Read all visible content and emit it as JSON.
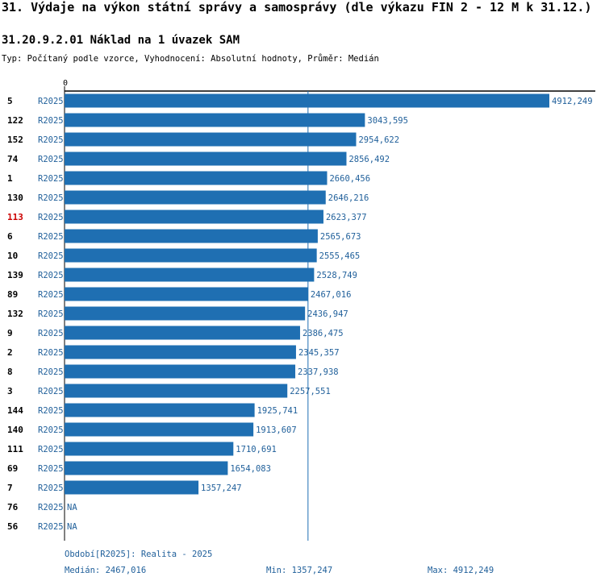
{
  "header": {
    "title": "31. Výdaje na výkon státní správy a samosprávy (dle výkazu FIN 2 - 12 M k 31.12.)",
    "subtitle": "31.20.9.2.01 Náklad na 1 úvazek SAM",
    "meta": "Typ: Počítaný podle vzorce, Vyhodnocení: Absolutní hodnoty, Průměr: Medián"
  },
  "chart_data": {
    "type": "bar",
    "orientation": "horizontal",
    "axis_zero_label": "0",
    "xlim": [
      0,
      4912.249
    ],
    "median_line": 2467.016,
    "series_label": "R2025",
    "highlight_color": "#cc0000",
    "bar_color": "#1f6fb2",
    "rows": [
      {
        "id": "5",
        "period": "R2025",
        "value": 4912.249,
        "label": "4912,249",
        "highlight": false
      },
      {
        "id": "122",
        "period": "R2025",
        "value": 3043.595,
        "label": "3043,595",
        "highlight": false
      },
      {
        "id": "152",
        "period": "R2025",
        "value": 2954.622,
        "label": "2954,622",
        "highlight": false
      },
      {
        "id": "74",
        "period": "R2025",
        "value": 2856.492,
        "label": "2856,492",
        "highlight": false
      },
      {
        "id": "1",
        "period": "R2025",
        "value": 2660.456,
        "label": "2660,456",
        "highlight": false
      },
      {
        "id": "130",
        "period": "R2025",
        "value": 2646.216,
        "label": "2646,216",
        "highlight": false
      },
      {
        "id": "113",
        "period": "R2025",
        "value": 2623.377,
        "label": "2623,377",
        "highlight": true
      },
      {
        "id": "6",
        "period": "R2025",
        "value": 2565.673,
        "label": "2565,673",
        "highlight": false
      },
      {
        "id": "10",
        "period": "R2025",
        "value": 2555.465,
        "label": "2555,465",
        "highlight": false
      },
      {
        "id": "139",
        "period": "R2025",
        "value": 2528.749,
        "label": "2528,749",
        "highlight": false
      },
      {
        "id": "89",
        "period": "R2025",
        "value": 2467.016,
        "label": "2467,016",
        "highlight": false
      },
      {
        "id": "132",
        "period": "R2025",
        "value": 2436.947,
        "label": "2436,947",
        "highlight": false
      },
      {
        "id": "9",
        "period": "R2025",
        "value": 2386.475,
        "label": "2386,475",
        "highlight": false
      },
      {
        "id": "2",
        "period": "R2025",
        "value": 2345.357,
        "label": "2345,357",
        "highlight": false
      },
      {
        "id": "8",
        "period": "R2025",
        "value": 2337.938,
        "label": "2337,938",
        "highlight": false
      },
      {
        "id": "3",
        "period": "R2025",
        "value": 2257.551,
        "label": "2257,551",
        "highlight": false
      },
      {
        "id": "144",
        "period": "R2025",
        "value": 1925.741,
        "label": "1925,741",
        "highlight": false
      },
      {
        "id": "140",
        "period": "R2025",
        "value": 1913.607,
        "label": "1913,607",
        "highlight": false
      },
      {
        "id": "111",
        "period": "R2025",
        "value": 1710.691,
        "label": "1710,691",
        "highlight": false
      },
      {
        "id": "69",
        "period": "R2025",
        "value": 1654.083,
        "label": "1654,083",
        "highlight": false
      },
      {
        "id": "7",
        "period": "R2025",
        "value": 1357.247,
        "label": "1357,247",
        "highlight": false
      },
      {
        "id": "76",
        "period": "R2025",
        "value": null,
        "label": "NA",
        "highlight": false
      },
      {
        "id": "56",
        "period": "R2025",
        "value": null,
        "label": "NA",
        "highlight": false
      }
    ]
  },
  "footer": {
    "period": "Období[R2025]: Realita - 2025",
    "median": "Medián: 2467,016",
    "min": "Min: 1357,247",
    "max": "Max: 4912,249"
  }
}
